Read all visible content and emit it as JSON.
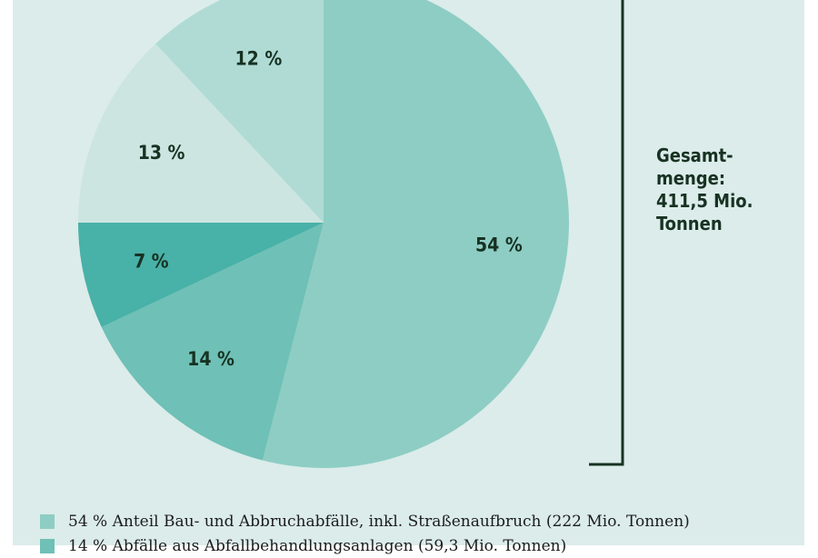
{
  "colors": {
    "background": "#dbecea",
    "text": "#173222",
    "bracket": "#173222"
  },
  "chart_data": {
    "type": "pie",
    "title": "",
    "total_label_lines": [
      "Gesamt-",
      "menge:",
      "411,5 Mio.",
      "Tonnen"
    ],
    "slices": [
      {
        "label": "54 %",
        "value": 54,
        "color": "#8ecdc4"
      },
      {
        "label": "14 %",
        "value": 14,
        "color": "#6fc0b6"
      },
      {
        "label": "7 %",
        "value": 7,
        "color": "#48b1a8"
      },
      {
        "label": "13 %",
        "value": 13,
        "color": "#cce5e1"
      },
      {
        "label": "12 %",
        "value": 12,
        "color": "#b0dbd5"
      }
    ],
    "legend": [
      {
        "text": "54 % Anteil Bau- und Abbruchabfälle, inkl. Straßenaufbruch (222 Mio. Tonnen)",
        "color": "#8ecdc4"
      },
      {
        "text": "14 % Abfälle aus Abfallbehandlungsanlagen (59,3 Mio. Tonnen)",
        "color": "#6fc0b6"
      }
    ]
  }
}
